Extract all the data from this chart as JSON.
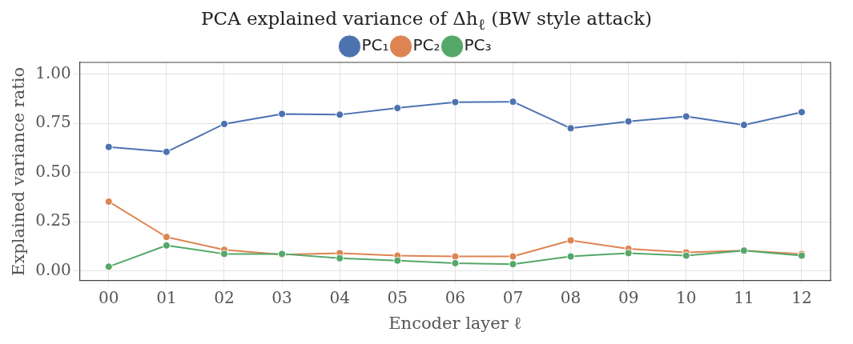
{
  "chart_data": {
    "type": "line",
    "title": "PCA explained variance of Δh$_{ℓ}$ (BW style attack)",
    "xlabel": "Encoder layer ℓ",
    "ylabel": "Explained variance ratio",
    "categories": [
      "00",
      "01",
      "02",
      "03",
      "04",
      "05",
      "06",
      "07",
      "08",
      "09",
      "10",
      "11",
      "12"
    ],
    "series": [
      {
        "name": "PC₁",
        "color": "#4c72b0",
        "values": [
          0.63,
          0.605,
          0.747,
          0.798,
          0.794,
          0.828,
          0.858,
          0.86,
          0.725,
          0.76,
          0.785,
          0.742,
          0.807
        ]
      },
      {
        "name": "PC₂",
        "color": "#dd8452",
        "values": [
          0.352,
          0.172,
          0.107,
          0.082,
          0.09,
          0.077,
          0.073,
          0.073,
          0.155,
          0.112,
          0.094,
          0.103,
          0.086
        ]
      },
      {
        "name": "PC₃",
        "color": "#55a868",
        "values": [
          0.021,
          0.129,
          0.086,
          0.086,
          0.064,
          0.052,
          0.039,
          0.034,
          0.073,
          0.09,
          0.077,
          0.103,
          0.077
        ]
      }
    ],
    "ylim": [
      -0.05,
      1.06
    ],
    "yticks": [
      {
        "value": 0,
        "label": "0.00"
      },
      {
        "value": 0.25,
        "label": "0.25"
      },
      {
        "value": 0.5,
        "label": "0.50"
      },
      {
        "value": 0.75,
        "label": "0.75"
      },
      {
        "value": 1,
        "label": "1.00"
      }
    ],
    "grid": true,
    "legend": "top",
    "marker": "circle",
    "line_style": "solid"
  }
}
